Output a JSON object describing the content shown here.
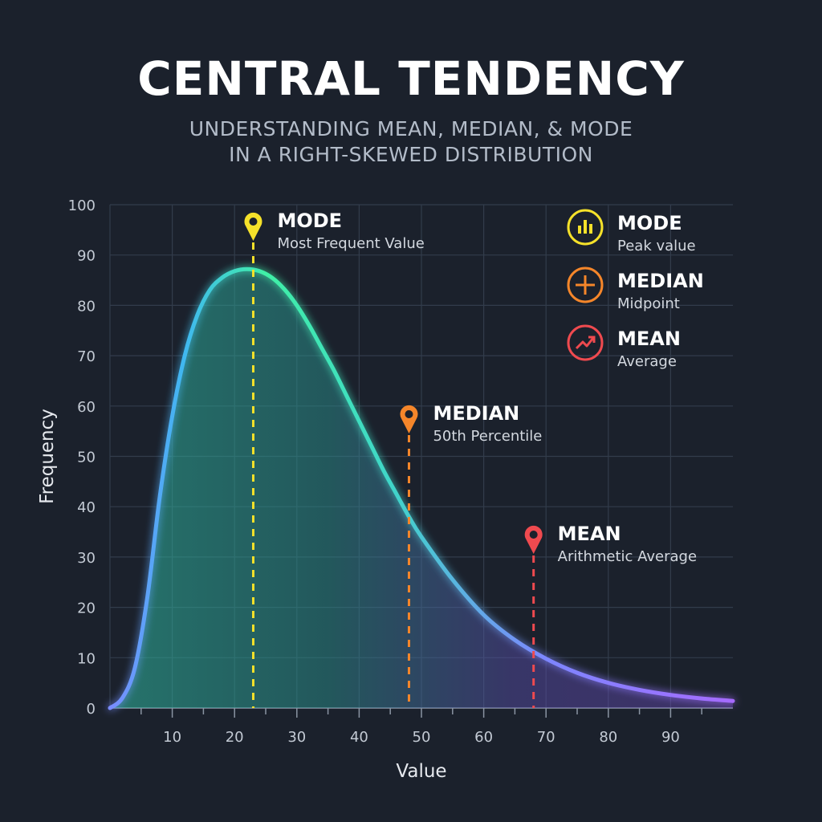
{
  "header": {
    "title": "CENTRAL TENDENCY",
    "subtitle_line1": "UNDERSTANDING MEAN, MEDIAN, & MODE",
    "subtitle_line2": "IN A RIGHT-SKEWED DISTRIBUTION"
  },
  "colors": {
    "background": "#1b212c",
    "grid": "#323c4b",
    "curve_start": "#3ff0a6",
    "curve_mid": "#3fb8f0",
    "curve_end": "#9b6bff",
    "mode": "#f5e12a",
    "median": "#f5862a",
    "mean": "#ef4a4f"
  },
  "chart_data": {
    "type": "area",
    "xlabel": "Value",
    "ylabel": "Frequency",
    "xlim": [
      0,
      100
    ],
    "ylim": [
      0,
      100
    ],
    "x_ticks": [
      10,
      20,
      30,
      40,
      50,
      60,
      70,
      80,
      90
    ],
    "y_ticks": [
      0,
      10,
      20,
      30,
      40,
      50,
      60,
      70,
      80,
      90,
      100
    ],
    "grid": true,
    "series": [
      {
        "x": [
          0,
          2,
          4,
          6,
          8,
          10,
          12,
          14,
          16,
          18,
          20,
          22,
          24,
          26,
          28,
          30,
          32,
          34,
          36,
          38,
          40,
          42,
          44,
          46,
          48,
          50,
          55,
          60,
          65,
          70,
          75,
          80,
          85,
          90,
          95,
          100
        ],
        "y": [
          0,
          2,
          8,
          22,
          42,
          58,
          70,
          78,
          83,
          85.5,
          86.8,
          87.2,
          86.8,
          85.5,
          83.2,
          80,
          76,
          71.5,
          67,
          62,
          57,
          52,
          47,
          42.5,
          38,
          34,
          25.5,
          18.5,
          13.5,
          9.8,
          7,
          5,
          3.6,
          2.6,
          1.9,
          1.4
        ]
      }
    ],
    "markers": [
      {
        "name": "MODE",
        "description": "Most Frequent Value",
        "x": 23,
        "color": "#f5e12a"
      },
      {
        "name": "MEDIAN",
        "description": "50th Percentile",
        "x": 48,
        "color": "#f5862a"
      },
      {
        "name": "MEAN",
        "description": "Arithmetic Average",
        "x": 68,
        "color": "#ef4a4f"
      }
    ],
    "legend_position": "top-right",
    "legend": [
      {
        "name": "MODE",
        "description": "Peak value",
        "icon": "bar-chart-icon",
        "color": "#f5e12a"
      },
      {
        "name": "MEDIAN",
        "description": "Midpoint",
        "icon": "midpoint-icon",
        "color": "#f5862a"
      },
      {
        "name": "MEAN",
        "description": "Average",
        "icon": "trend-up-icon",
        "color": "#ef4a4f"
      }
    ]
  }
}
